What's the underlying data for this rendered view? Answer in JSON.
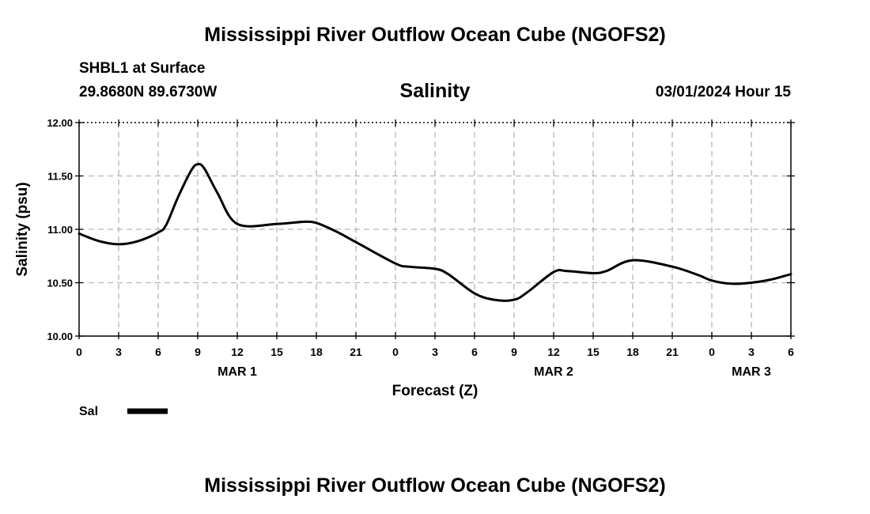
{
  "page": {
    "title": "Mississippi River Outflow Ocean Cube (NGOFS2)",
    "footer_title": "Mississippi River Outflow Ocean Cube (NGOFS2)",
    "station": "SHBL1 at Surface",
    "coords": "29.8680N  89.6730W",
    "valid_time": "03/01/2024 Hour 15"
  },
  "chart_data": {
    "type": "line",
    "title": "Salinity",
    "xlabel": "Forecast (Z)",
    "ylabel": "Salinity (psu)",
    "xlim": [
      0,
      54
    ],
    "ylim": [
      10.0,
      12.0
    ],
    "grid": true,
    "y_ticks": [
      10.0,
      10.5,
      11.0,
      11.5,
      12.0
    ],
    "y_tick_labels": [
      "10.00",
      "10.50",
      "11.00",
      "11.50",
      "12.00"
    ],
    "x_ticks": [
      0,
      3,
      6,
      9,
      12,
      15,
      18,
      21,
      24,
      27,
      30,
      33,
      36,
      39,
      42,
      45,
      48,
      51,
      54
    ],
    "x_tick_labels": [
      "0",
      "3",
      "6",
      "9",
      "12",
      "15",
      "18",
      "21",
      "0",
      "3",
      "6",
      "9",
      "12",
      "15",
      "18",
      "21",
      "0",
      "3",
      "6"
    ],
    "date_labels": [
      {
        "label": "MAR 1",
        "x": 12
      },
      {
        "label": "MAR 2",
        "x": 36
      },
      {
        "label": "MAR 3",
        "x": 51
      }
    ],
    "legend": {
      "label": "Sal",
      "placement": "bottom-left"
    },
    "series": [
      {
        "name": "Sal",
        "color": "#000000",
        "x": [
          0,
          1.5,
          3,
          4.5,
          6,
          6.6,
          7.5,
          8.5,
          9,
          9.5,
          10.5,
          12,
          15,
          17,
          18,
          19.5,
          21,
          24,
          25,
          27,
          28,
          30,
          31.5,
          33,
          34,
          36,
          37,
          39,
          40,
          42,
          45,
          47,
          48,
          49.5,
          51,
          52.5,
          54
        ],
        "values": [
          10.96,
          10.89,
          10.86,
          10.89,
          10.97,
          11.04,
          11.3,
          11.55,
          11.61,
          11.57,
          11.34,
          11.05,
          11.05,
          11.07,
          11.06,
          10.98,
          10.88,
          10.68,
          10.65,
          10.63,
          10.58,
          10.4,
          10.34,
          10.34,
          10.41,
          10.6,
          10.61,
          10.59,
          10.61,
          10.71,
          10.65,
          10.57,
          10.52,
          10.49,
          10.5,
          10.53,
          10.58
        ]
      }
    ]
  }
}
